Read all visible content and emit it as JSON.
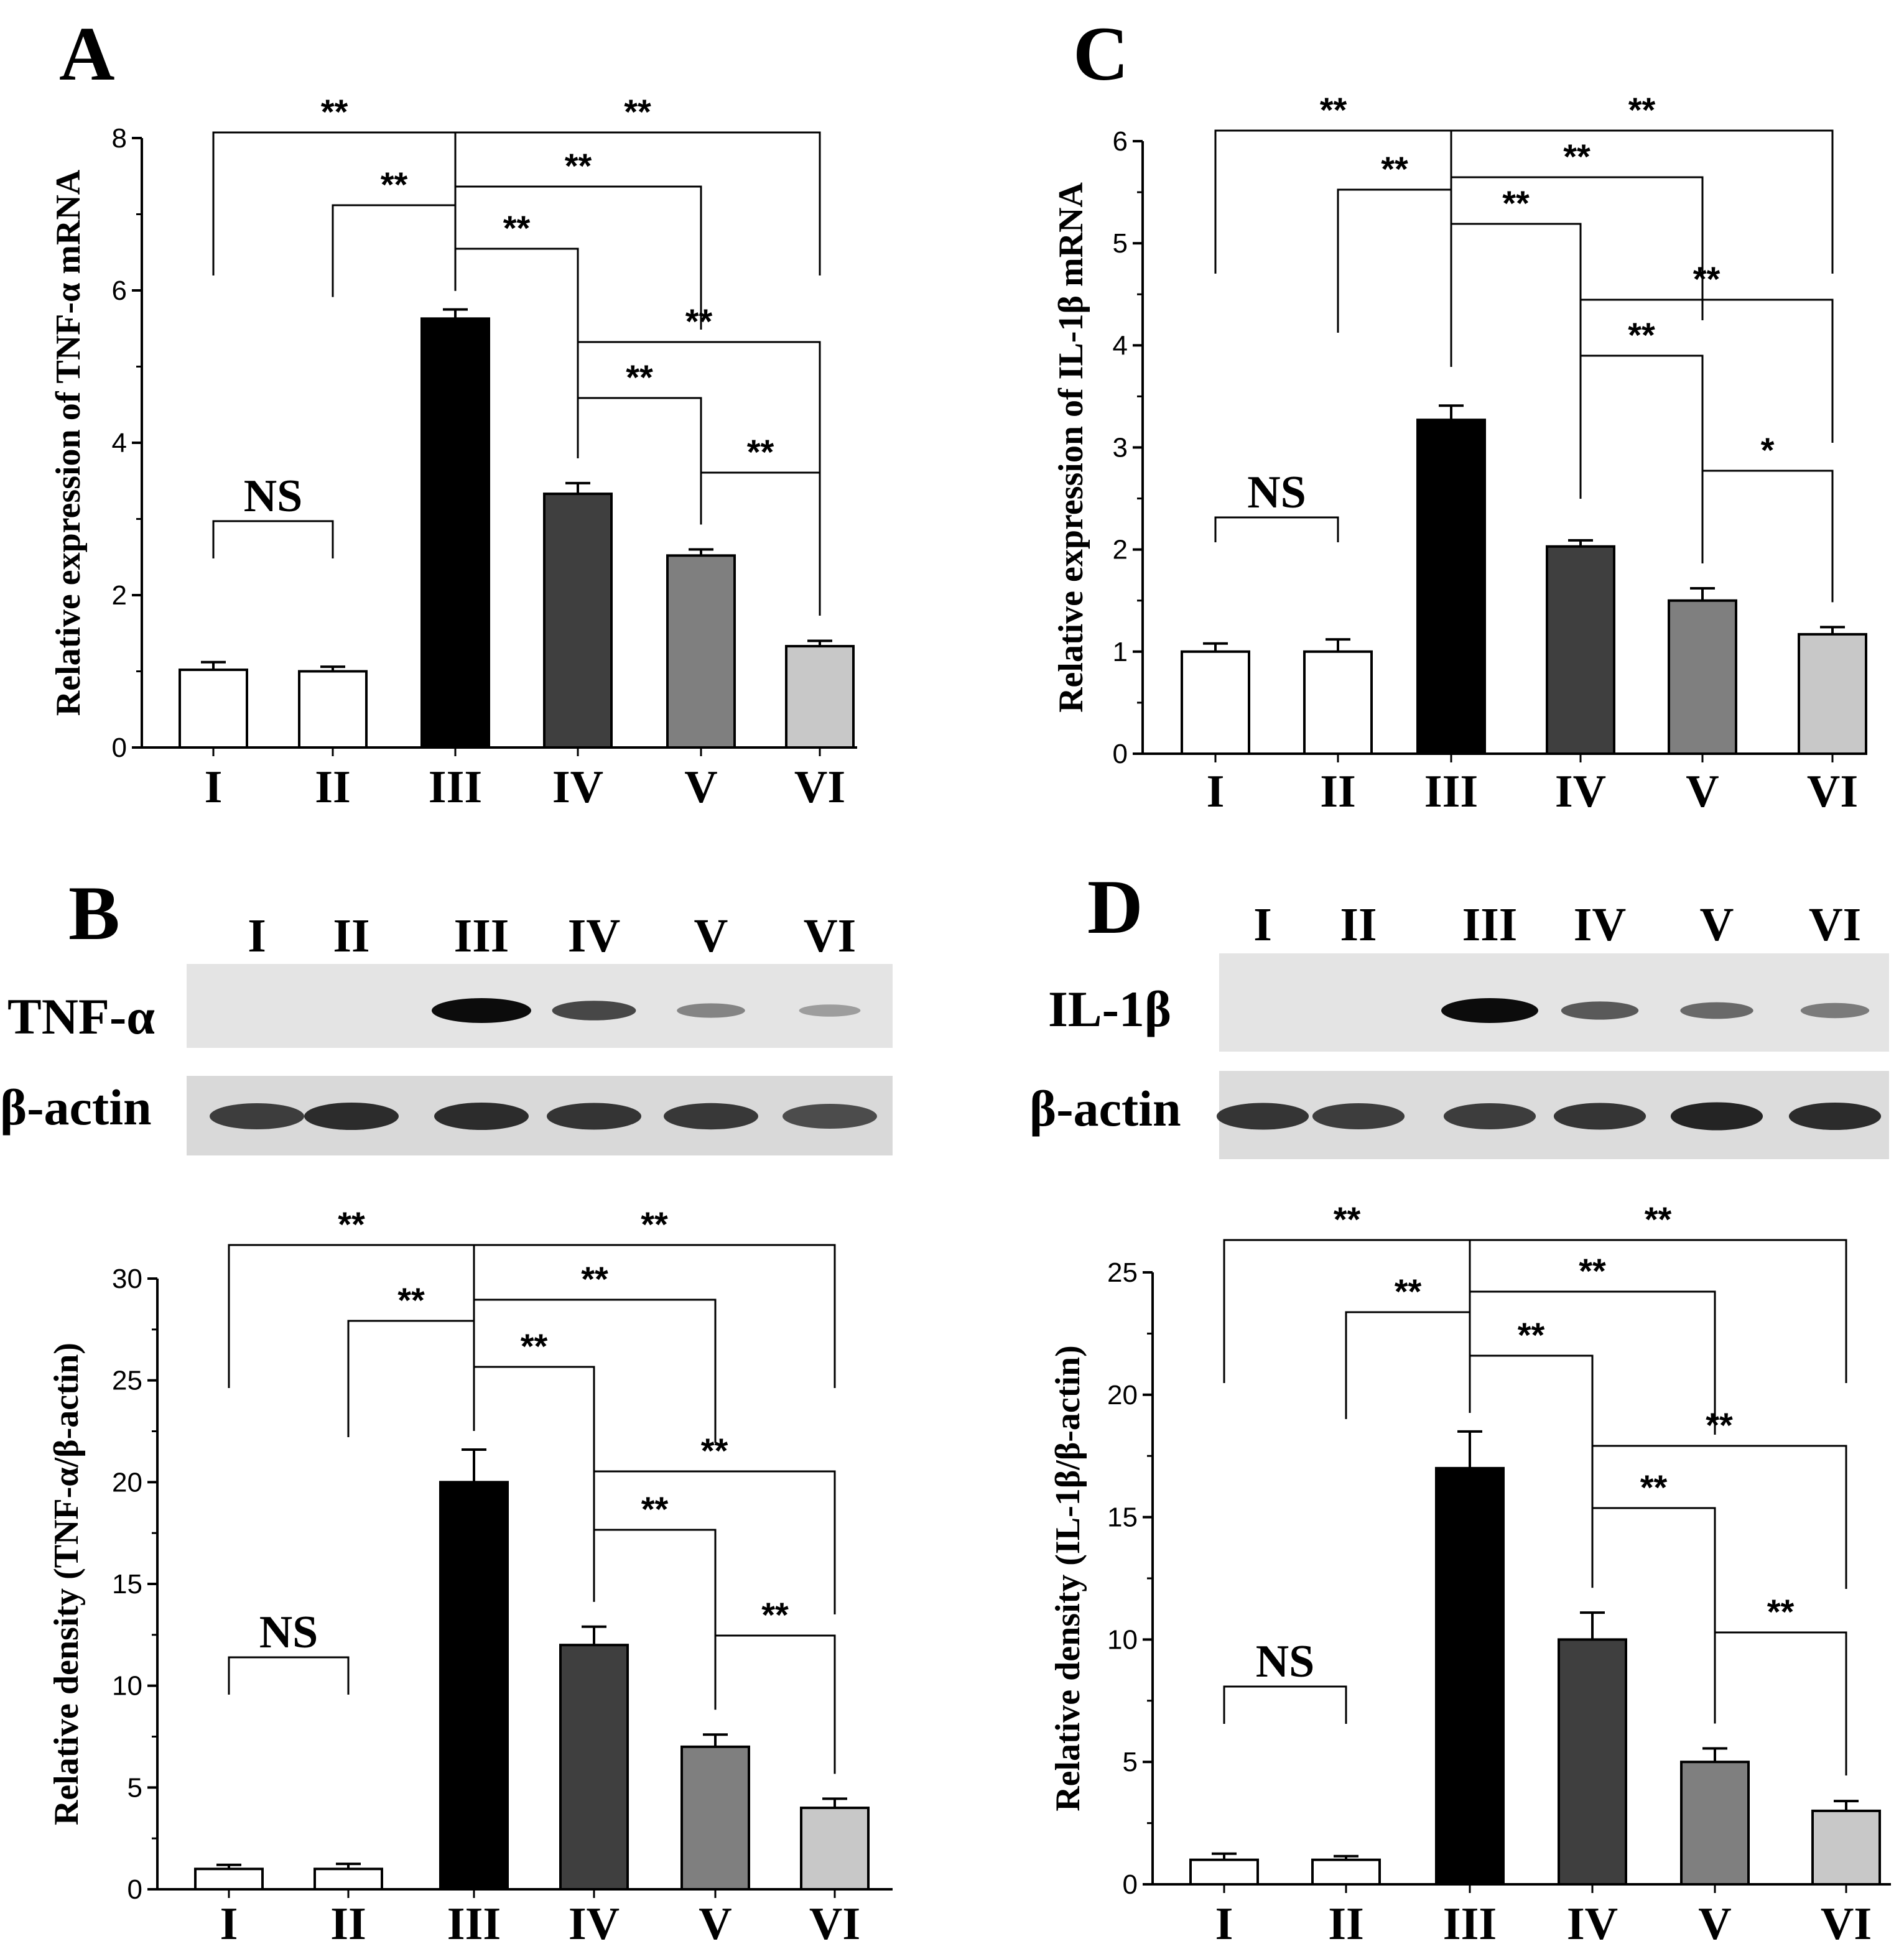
{
  "panels": {
    "A": {
      "letter": "A"
    },
    "B": {
      "letter": "B"
    },
    "C": {
      "letter": "C"
    },
    "D": {
      "letter": "D"
    }
  },
  "blots": {
    "B": {
      "lanes": [
        "I",
        "II",
        "III",
        "IV",
        "V",
        "VI"
      ],
      "target_label": "TNF-α",
      "control_label": "β-actin",
      "target_intensity": [
        0,
        0,
        1.0,
        0.65,
        0.3,
        0.15
      ],
      "control_intensity": [
        0.7,
        0.8,
        0.8,
        0.75,
        0.72,
        0.6
      ]
    },
    "D": {
      "lanes": [
        "I",
        "II",
        "III",
        "IV",
        "V",
        "VI"
      ],
      "target_label": "IL-1β",
      "control_label": "β-actin",
      "target_intensity": [
        0,
        0,
        1.0,
        0.55,
        0.45,
        0.35
      ],
      "control_intensity": [
        0.75,
        0.7,
        0.7,
        0.75,
        0.85,
        0.8
      ]
    }
  },
  "colors": {
    "bars": [
      "#ffffff",
      "#ffffff",
      "#000000",
      "#3f3f3f",
      "#7f7f7f",
      "#c8c8c8"
    ],
    "axis": "#000000"
  },
  "chart_data": [
    {
      "id": "A",
      "type": "bar",
      "ylabel": "Relative expression of TNF-α mRNA",
      "categories": [
        "I",
        "II",
        "III",
        "IV",
        "V",
        "VI"
      ],
      "values": [
        1.02,
        1.0,
        5.63,
        3.33,
        2.52,
        1.33
      ],
      "errors": [
        0.1,
        0.06,
        0.12,
        0.14,
        0.08,
        0.07
      ],
      "ylim": [
        0,
        8
      ],
      "yticks": [
        "0",
        "2",
        "4",
        "6",
        "8"
      ],
      "ns": {
        "from": 0,
        "to": 1,
        "label": "NS"
      },
      "comparisons": [
        {
          "from": 0,
          "to": 2,
          "label": "**"
        },
        {
          "from": 1,
          "to": 2,
          "label": "**"
        },
        {
          "from": 2,
          "to": 5,
          "label": "**"
        },
        {
          "from": 2,
          "to": 4,
          "label": "**"
        },
        {
          "from": 2,
          "to": 3,
          "label": "**"
        },
        {
          "from": 3,
          "to": 5,
          "label": "**"
        },
        {
          "from": 3,
          "to": 4,
          "label": "**"
        },
        {
          "from": 4,
          "to": 5,
          "label": "**"
        }
      ]
    },
    {
      "id": "B",
      "type": "bar",
      "ylabel": "Relative density (TNF-α/β-actin)",
      "categories": [
        "I",
        "II",
        "III",
        "IV",
        "V",
        "VI"
      ],
      "values": [
        1.0,
        1.0,
        20.0,
        12.0,
        7.0,
        4.0
      ],
      "errors": [
        0.2,
        0.25,
        1.6,
        0.9,
        0.6,
        0.45
      ],
      "ylim": [
        0,
        30
      ],
      "yticks": [
        "0",
        "5",
        "10",
        "15",
        "20",
        "25",
        "30"
      ],
      "ns": {
        "from": 0,
        "to": 1,
        "label": "NS"
      },
      "comparisons": [
        {
          "from": 0,
          "to": 2,
          "label": "**"
        },
        {
          "from": 1,
          "to": 2,
          "label": "**"
        },
        {
          "from": 2,
          "to": 5,
          "label": "**"
        },
        {
          "from": 2,
          "to": 4,
          "label": "**"
        },
        {
          "from": 2,
          "to": 3,
          "label": "**"
        },
        {
          "from": 3,
          "to": 5,
          "label": "**"
        },
        {
          "from": 3,
          "to": 4,
          "label": "**"
        },
        {
          "from": 4,
          "to": 5,
          "label": "**"
        }
      ]
    },
    {
      "id": "C",
      "type": "bar",
      "ylabel": "Relative expression of IL-1β mRNA",
      "categories": [
        "I",
        "II",
        "III",
        "IV",
        "V",
        "VI"
      ],
      "values": [
        1.0,
        1.0,
        3.27,
        2.03,
        1.5,
        1.17
      ],
      "errors": [
        0.08,
        0.12,
        0.14,
        0.06,
        0.12,
        0.07
      ],
      "ylim": [
        0,
        6
      ],
      "yticks": [
        "0",
        "1",
        "2",
        "3",
        "4",
        "5",
        "6"
      ],
      "ns": {
        "from": 0,
        "to": 1,
        "label": "NS"
      },
      "comparisons": [
        {
          "from": 0,
          "to": 2,
          "label": "**"
        },
        {
          "from": 1,
          "to": 2,
          "label": "**"
        },
        {
          "from": 2,
          "to": 5,
          "label": "**"
        },
        {
          "from": 2,
          "to": 4,
          "label": "**"
        },
        {
          "from": 2,
          "to": 3,
          "label": "**"
        },
        {
          "from": 3,
          "to": 5,
          "label": "**"
        },
        {
          "from": 3,
          "to": 4,
          "label": "**"
        },
        {
          "from": 4,
          "to": 5,
          "label": "*"
        }
      ]
    },
    {
      "id": "D",
      "type": "bar",
      "ylabel": "Relative density (IL-1β/β-actin)",
      "categories": [
        "I",
        "II",
        "III",
        "IV",
        "V",
        "VI"
      ],
      "values": [
        1.0,
        1.0,
        17.0,
        10.0,
        5.0,
        3.0
      ],
      "errors": [
        0.25,
        0.15,
        1.5,
        1.1,
        0.55,
        0.4
      ],
      "ylim": [
        0,
        25
      ],
      "yticks": [
        "0",
        "5",
        "10",
        "15",
        "20",
        "25"
      ],
      "ns": {
        "from": 0,
        "to": 1,
        "label": "NS"
      },
      "comparisons": [
        {
          "from": 0,
          "to": 2,
          "label": "**"
        },
        {
          "from": 1,
          "to": 2,
          "label": "**"
        },
        {
          "from": 2,
          "to": 5,
          "label": "**"
        },
        {
          "from": 2,
          "to": 4,
          "label": "**"
        },
        {
          "from": 2,
          "to": 3,
          "label": "**"
        },
        {
          "from": 3,
          "to": 5,
          "label": "**"
        },
        {
          "from": 3,
          "to": 4,
          "label": "**"
        },
        {
          "from": 4,
          "to": 5,
          "label": "**"
        }
      ]
    }
  ]
}
